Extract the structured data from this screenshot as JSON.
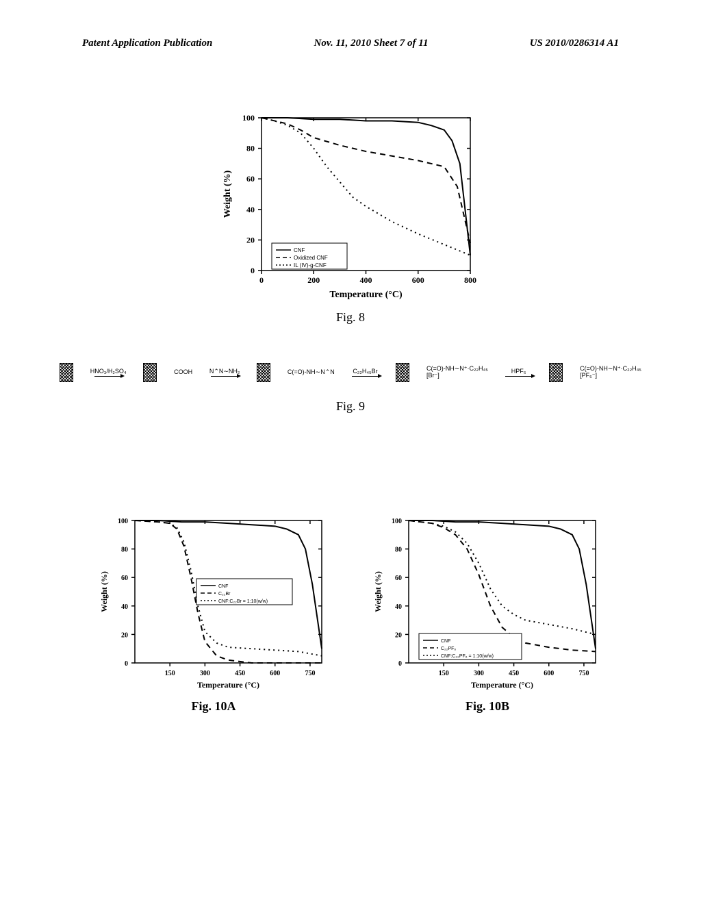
{
  "header": {
    "left": "Patent Application Publication",
    "center": "Nov. 11, 2010  Sheet 7 of 11",
    "right": "US 2010/0286314 A1"
  },
  "fig8": {
    "caption": "Fig. 8",
    "type": "line",
    "xlabel": "Temperature (°C)",
    "ylabel": "Weight (%)",
    "xlim": [
      0,
      800
    ],
    "ylim": [
      0,
      100
    ],
    "xticks": [
      0,
      200,
      400,
      600,
      800
    ],
    "yticks": [
      0,
      20,
      40,
      60,
      80,
      100
    ],
    "label_fontsize": 14,
    "tick_fontsize": 12,
    "background_color": "#ffffff",
    "axis_color": "#000000",
    "legend_position": "lower-left-inside",
    "series": [
      {
        "name": "CNF",
        "style": "solid",
        "color": "#000000",
        "width": 2,
        "x": [
          0,
          100,
          200,
          300,
          400,
          500,
          600,
          650,
          700,
          730,
          760,
          780,
          800
        ],
        "y": [
          100,
          100,
          99,
          99,
          98,
          98,
          97,
          95,
          92,
          85,
          70,
          40,
          10
        ]
      },
      {
        "name": "Oxidized CNF",
        "style": "dashed",
        "color": "#000000",
        "width": 2,
        "x": [
          0,
          50,
          100,
          150,
          200,
          300,
          400,
          500,
          600,
          700,
          750,
          800
        ],
        "y": [
          100,
          98,
          96,
          92,
          87,
          82,
          78,
          75,
          72,
          68,
          55,
          18
        ]
      },
      {
        "name": "IL (IV)-g-CNF",
        "style": "dotted",
        "color": "#000000",
        "width": 2,
        "x": [
          0,
          50,
          100,
          150,
          200,
          250,
          300,
          350,
          400,
          500,
          600,
          700,
          800
        ],
        "y": [
          100,
          98,
          95,
          90,
          80,
          68,
          58,
          48,
          42,
          32,
          24,
          17,
          10
        ]
      }
    ]
  },
  "fig9": {
    "caption": "Fig. 9",
    "steps": [
      {
        "label_top": "HNO₃/H₂SO₄"
      },
      {
        "product": "COOH"
      },
      {
        "label_top": "N⌃N∼NH₂"
      },
      {
        "product": "C(=O)-NH∼N⌃N"
      },
      {
        "label_top": "C₂₂H₄₅Br"
      },
      {
        "product": "C(=O)-NH∼N⁺·C₂₂H₄₅ [Br⁻]"
      },
      {
        "label_top": "HPF₆"
      },
      {
        "product": "C(=O)-NH∼N⁺·C₂₂H₄₅ [PF₆⁻]"
      }
    ]
  },
  "fig10a": {
    "caption": "Fig. 10A",
    "type": "line",
    "xlabel": "Temperature (°C)",
    "ylabel": "Weight (%)",
    "xlim": [
      0,
      800
    ],
    "ylim": [
      0,
      100
    ],
    "xticks": [
      150,
      300,
      450,
      600,
      750
    ],
    "yticks": [
      0,
      20,
      40,
      60,
      80,
      100
    ],
    "label_fontsize": 12,
    "tick_fontsize": 10,
    "background_color": "#ffffff",
    "axis_color": "#000000",
    "legend_position": "center-right-inside",
    "series": [
      {
        "name": "CNF",
        "style": "solid",
        "color": "#000000",
        "width": 2,
        "x": [
          0,
          100,
          200,
          300,
          400,
          500,
          600,
          650,
          700,
          730,
          760,
          800
        ],
        "y": [
          100,
          100,
          99,
          99,
          98,
          97,
          96,
          94,
          90,
          80,
          55,
          10
        ]
      },
      {
        "name": "C₂₂Br",
        "style": "dashed",
        "color": "#000000",
        "width": 2,
        "x": [
          0,
          100,
          150,
          180,
          210,
          240,
          270,
          300,
          350,
          400,
          500,
          800
        ],
        "y": [
          100,
          99,
          98,
          94,
          82,
          60,
          35,
          15,
          5,
          2,
          0,
          0
        ]
      },
      {
        "name": "CNF:C₂₂Br = 1:10(w/w)",
        "style": "dotted",
        "color": "#000000",
        "width": 2,
        "x": [
          0,
          100,
          150,
          180,
          210,
          240,
          270,
          300,
          350,
          400,
          500,
          600,
          700,
          800
        ],
        "y": [
          100,
          99,
          98,
          95,
          85,
          65,
          40,
          22,
          14,
          11,
          10,
          9,
          8,
          5
        ]
      }
    ]
  },
  "fig10b": {
    "caption": "Fig. 10B",
    "type": "line",
    "xlabel": "Temperature (°C)",
    "ylabel": "Weight (%)",
    "xlim": [
      0,
      800
    ],
    "ylim": [
      0,
      100
    ],
    "xticks": [
      150,
      300,
      450,
      600,
      750
    ],
    "yticks": [
      0,
      20,
      40,
      60,
      80,
      100
    ],
    "label_fontsize": 12,
    "tick_fontsize": 10,
    "background_color": "#ffffff",
    "axis_color": "#000000",
    "legend_position": "lower-left-inside",
    "series": [
      {
        "name": "CNF",
        "style": "solid",
        "color": "#000000",
        "width": 2,
        "x": [
          0,
          100,
          200,
          300,
          400,
          500,
          600,
          650,
          700,
          730,
          760,
          800
        ],
        "y": [
          100,
          100,
          99,
          99,
          98,
          97,
          96,
          94,
          90,
          80,
          55,
          10
        ]
      },
      {
        "name": "C₂₂PF₆",
        "style": "dashed",
        "color": "#000000",
        "width": 2,
        "x": [
          0,
          100,
          150,
          200,
          250,
          300,
          350,
          400,
          450,
          500,
          600,
          700,
          800
        ],
        "y": [
          100,
          98,
          95,
          90,
          80,
          62,
          40,
          25,
          18,
          14,
          11,
          9,
          8
        ]
      },
      {
        "name": "CNF:C₂₂PF₆ = 1:10(w/w)",
        "style": "dotted",
        "color": "#000000",
        "width": 2,
        "x": [
          0,
          100,
          150,
          200,
          250,
          300,
          350,
          400,
          450,
          500,
          600,
          700,
          800
        ],
        "y": [
          100,
          98,
          96,
          92,
          84,
          70,
          52,
          40,
          34,
          30,
          27,
          24,
          20
        ]
      }
    ]
  }
}
